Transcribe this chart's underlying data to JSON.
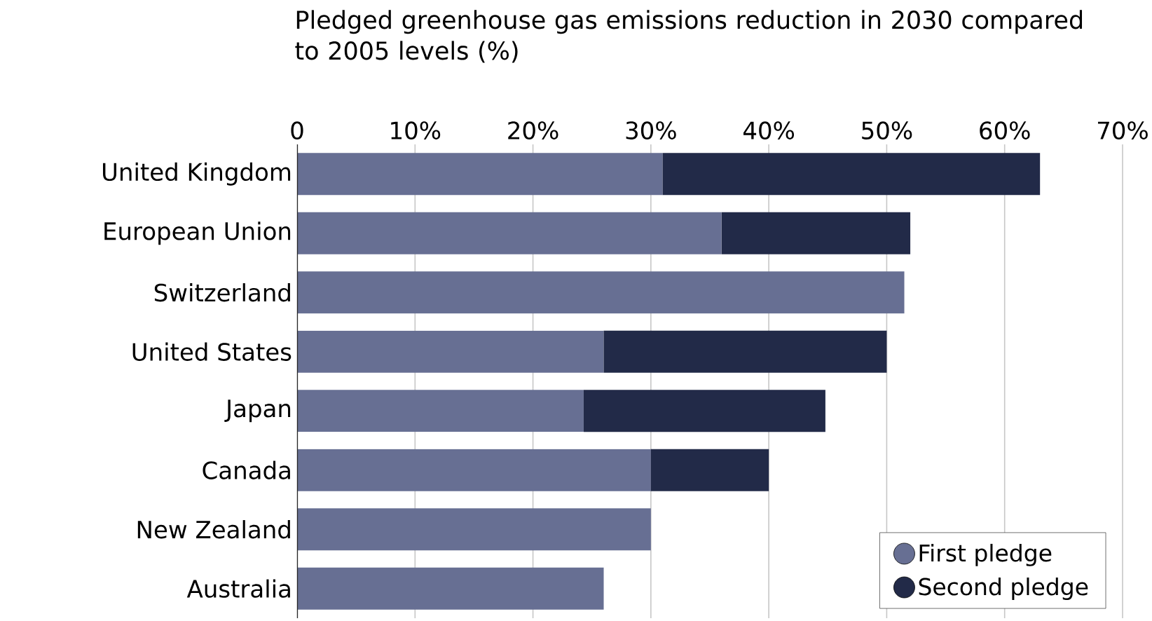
{
  "chart_data": {
    "type": "bar",
    "orientation": "horizontal",
    "stacked": true,
    "title": "Pledged greenhouse gas emissions reduction in 2030 compared to 2005 levels (%)",
    "categories": [
      "United Kingdom",
      "European Union",
      "Switzerland",
      "United States",
      "Japan",
      "Canada",
      "New Zealand",
      "Australia"
    ],
    "series": [
      {
        "name": "First pledge",
        "color": "#676f93",
        "values": [
          31,
          36,
          51.5,
          26,
          24.3,
          30,
          30,
          26
        ]
      },
      {
        "name": "Second pledge",
        "color": "#222a48",
        "values": [
          32,
          16,
          null,
          24,
          20.5,
          10,
          null,
          null
        ]
      }
    ],
    "xlim": [
      0,
      70
    ],
    "xticks": [
      0,
      {
        "value": 10,
        "label": "10%"
      },
      {
        "value": 20,
        "label": "20%"
      },
      {
        "value": 30,
        "label": "30%"
      },
      {
        "value": 40,
        "label": "40%"
      },
      {
        "value": 50,
        "label": "50%"
      },
      {
        "value": 60,
        "label": "60%"
      },
      {
        "value": 70,
        "label": "70%"
      }
    ],
    "grid": "x",
    "legend": "bottom right",
    "marker": "circle"
  }
}
